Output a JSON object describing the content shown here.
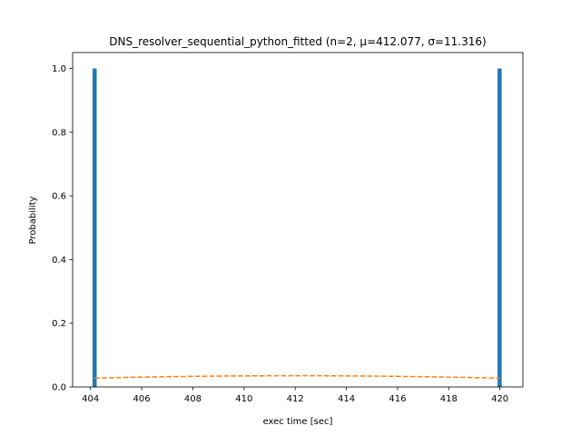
{
  "chart_data": {
    "type": "bar",
    "title": "DNS_resolver_sequential_python_fitted (n=2, μ=412.077, σ=11.316)",
    "xlabel": "exec time [sec]",
    "ylabel": "Probability",
    "xlim": [
      403.3,
      420.9
    ],
    "ylim": [
      0,
      1.05
    ],
    "xticks": [
      404,
      406,
      408,
      410,
      412,
      414,
      416,
      418,
      420
    ],
    "yticks": [
      0.0,
      0.2,
      0.4,
      0.6,
      0.8,
      1.0
    ],
    "grid": false,
    "series": [
      {
        "type": "bar",
        "color": "#1f77b4",
        "x": [
          404.16,
          419.99
        ],
        "values": [
          1.0,
          1.0
        ],
        "bar_width": 0.16
      },
      {
        "type": "line",
        "style": "dashed",
        "color": "#ff7f0e",
        "x": [
          404.16,
          405,
          406,
          407,
          408,
          409,
          410,
          411,
          412.077,
          413,
          414,
          415,
          416,
          417,
          418,
          419,
          419.99
        ],
        "values": [
          0.0277,
          0.0293,
          0.0309,
          0.0322,
          0.0333,
          0.0341,
          0.0347,
          0.0351,
          0.0353,
          0.0351,
          0.0347,
          0.0341,
          0.0333,
          0.0322,
          0.0309,
          0.0293,
          0.0277
        ]
      }
    ]
  }
}
